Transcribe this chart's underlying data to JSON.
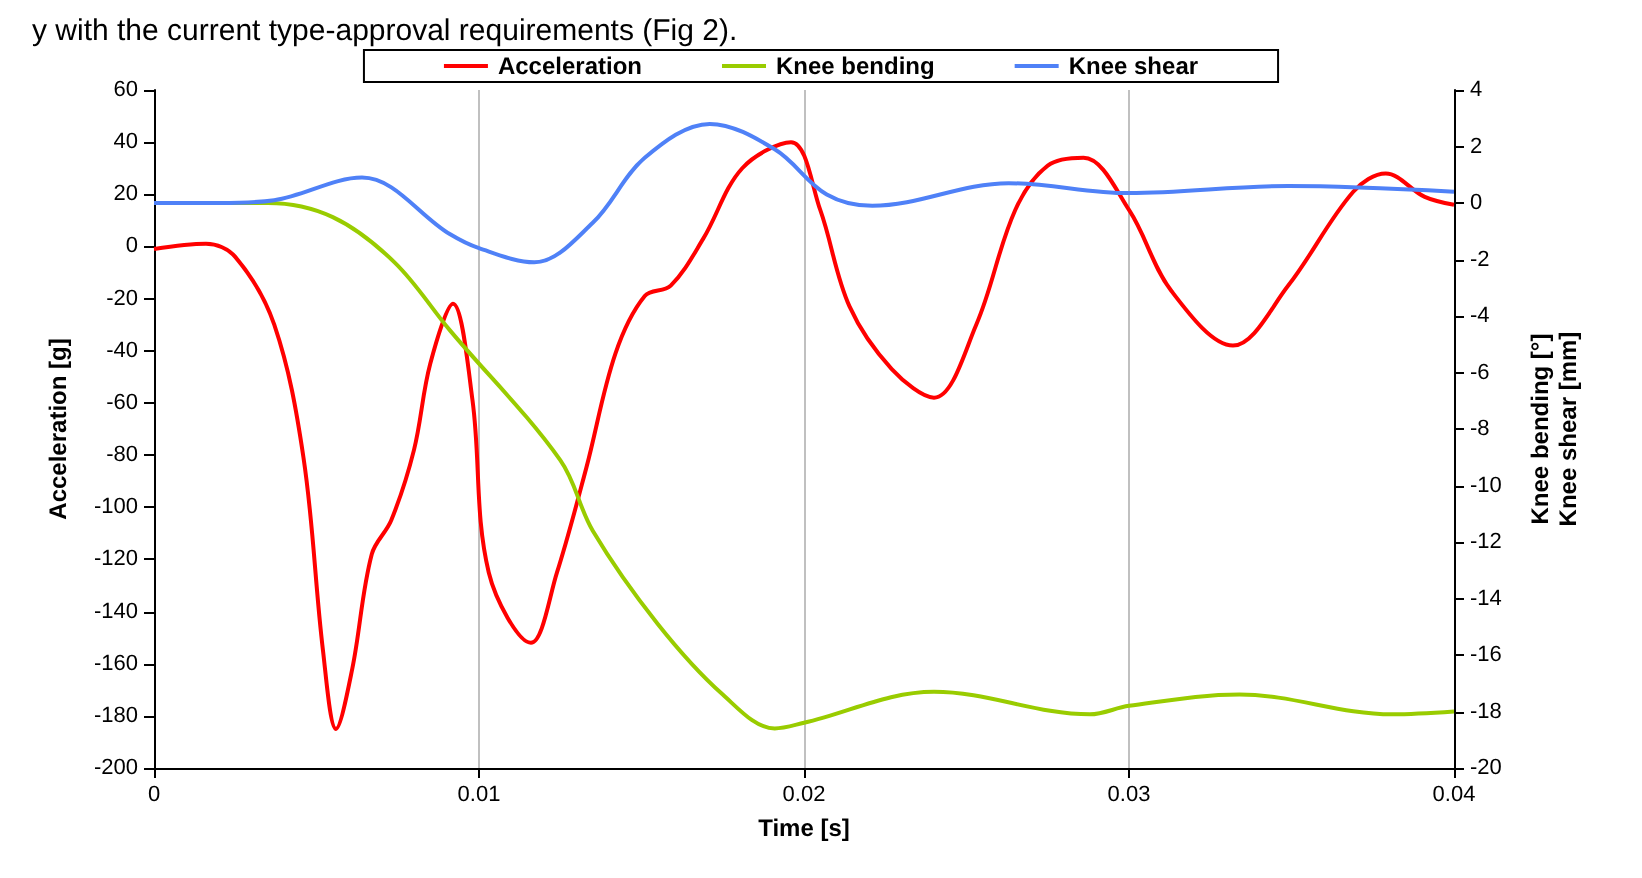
{
  "chart_data": {
    "type": "line",
    "xlabel": "Time [s]",
    "ylabel": "Acceleration [g]",
    "y2label": "Knee bending [°]\nKnee shear [mm]",
    "annotations": [
      "y with the current type-approval requirements (Fig 2)."
    ],
    "xlim": [
      0,
      0.04
    ],
    "xticks": [
      0,
      0.01,
      0.02,
      0.03,
      0.04
    ],
    "ylim": [
      -200,
      60
    ],
    "yticks": [
      -200,
      -180,
      -160,
      -140,
      -120,
      -100,
      -80,
      -60,
      -40,
      -20,
      0,
      20,
      40,
      60
    ],
    "y2lim": [
      -20,
      4
    ],
    "y2ticks": [
      -20,
      -18,
      -16,
      -14,
      -12,
      -10,
      -8,
      -6,
      -4,
      -2,
      0,
      2,
      4
    ],
    "grid": "x",
    "legend": "top",
    "marker": "none",
    "line_style": "solid",
    "series": [
      {
        "name": "Acceleration",
        "color": "#ff0000",
        "x": [
          0,
          0.0016,
          0.0025,
          0.0037,
          0.0046,
          0.0052,
          0.0056,
          0.0061,
          0.0067,
          0.0073,
          0.008,
          0.0085,
          0.0092,
          0.0098,
          0.0103,
          0.0116,
          0.0124,
          0.0133,
          0.0142,
          0.0151,
          0.0159,
          0.0169,
          0.0181,
          0.0196,
          0.0205,
          0.0214,
          0.0227,
          0.024,
          0.0253,
          0.0265,
          0.0275,
          0.0286,
          0.03,
          0.0313,
          0.0332,
          0.0349,
          0.0369,
          0.0379,
          0.0391,
          0.04
        ],
        "values": [
          -1,
          1,
          -4,
          -30,
          -81,
          -155,
          -185,
          -162,
          -118,
          -105,
          -78,
          -45,
          -22,
          -59,
          -125,
          -152,
          -125,
          -85,
          -41,
          -19,
          -15,
          3,
          30,
          40,
          14,
          -23,
          -47,
          -58,
          -30,
          14,
          31,
          34,
          14,
          -17,
          -38,
          -15,
          21,
          28,
          19,
          16
        ]
      },
      {
        "name": "Knee bending",
        "color": "#99cc00",
        "axis": "y2",
        "x": [
          0,
          0.002,
          0.0035,
          0.0055,
          0.0074,
          0.0091,
          0.0125,
          0.0135,
          0.0155,
          0.0175,
          0.0191,
          0.02,
          0.024,
          0.0288,
          0.03,
          0.0334,
          0.0381,
          0.04
        ],
        "values": [
          0,
          0,
          0,
          -0.5,
          -2.1,
          -4.5,
          -9.1,
          -11.6,
          -14.9,
          -17.4,
          -18.6,
          -18.4,
          -17.3,
          -18.1,
          -17.8,
          -17.4,
          -18.1,
          -18
        ]
      },
      {
        "name": "Knee shear",
        "color": "#4f81f7",
        "axis": "y2",
        "x": [
          0,
          0.002,
          0.0037,
          0.0064,
          0.0091,
          0.01,
          0.0117,
          0.0135,
          0.0151,
          0.0171,
          0.0191,
          0.0207,
          0.0221,
          0.0263,
          0.03,
          0.0349,
          0.04
        ],
        "values": [
          0,
          0,
          0.1,
          0.9,
          -1.1,
          -1.6,
          -2.1,
          -0.7,
          1.6,
          2.8,
          1.9,
          0.3,
          -0.1,
          0.7,
          0.35,
          0.6,
          0.4
        ]
      }
    ]
  }
}
